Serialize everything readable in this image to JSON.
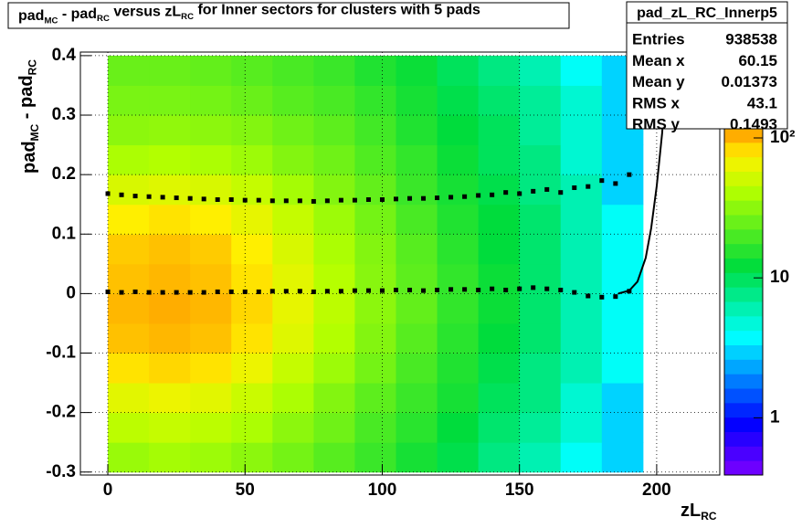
{
  "chart_data": {
    "type": "heatmap",
    "title": [
      "pad",
      "MC",
      " - pad",
      "RC",
      " versus zL",
      "RC",
      " for Inner sectors for clusters with 5 pads"
    ],
    "x_label": [
      "zL",
      "RC"
    ],
    "y_label": [
      "pad",
      "MC",
      " - pad",
      "RC"
    ],
    "xlim": [
      -10,
      223
    ],
    "ylim": [
      -0.305,
      0.406
    ],
    "xticks": [
      0,
      50,
      100,
      150,
      200
    ],
    "yticks": [
      -0.3,
      -0.2,
      -0.1,
      0,
      0.1,
      0.2,
      0.3,
      0.4
    ],
    "grid": true,
    "zlim": [
      0.39,
      118
    ],
    "zlog": true,
    "zticks": [
      1,
      10,
      {
        "value": 100,
        "label": "10²"
      }
    ],
    "xbins": [
      0,
      15,
      30,
      45,
      60,
      75,
      90,
      105,
      120,
      135,
      150,
      165,
      180,
      195
    ],
    "ybins": [
      -0.3,
      -0.25,
      -0.2,
      -0.15,
      -0.1,
      -0.05,
      0,
      0.05,
      0.1,
      0.15,
      0.2,
      0.25,
      0.3,
      0.35,
      0.4
    ],
    "z": [
      [
        35,
        38,
        36,
        32,
        27,
        22,
        18,
        14,
        11,
        8,
        6,
        4,
        3
      ],
      [
        45,
        48,
        45,
        40,
        32,
        26,
        20,
        16,
        12,
        9,
        7,
        5,
        3
      ],
      [
        60,
        65,
        60,
        50,
        40,
        30,
        23,
        18,
        14,
        10,
        8,
        5,
        3
      ],
      [
        80,
        85,
        80,
        65,
        48,
        36,
        27,
        20,
        15,
        11,
        8,
        6,
        4
      ],
      [
        95,
        100,
        95,
        80,
        58,
        42,
        30,
        22,
        16,
        12,
        9,
        6,
        4
      ],
      [
        100,
        105,
        100,
        85,
        62,
        45,
        32,
        24,
        17,
        13,
        9,
        6,
        4
      ],
      [
        95,
        100,
        95,
        80,
        60,
        43,
        31,
        23,
        17,
        13,
        9,
        6,
        4
      ],
      [
        90,
        95,
        90,
        75,
        55,
        40,
        30,
        22,
        16,
        12,
        9,
        6,
        4
      ],
      [
        75,
        80,
        75,
        62,
        48,
        36,
        27,
        20,
        15,
        12,
        9,
        6,
        4
      ],
      [
        55,
        58,
        55,
        48,
        38,
        30,
        24,
        18,
        14,
        11,
        8,
        6,
        3
      ],
      [
        40,
        42,
        40,
        36,
        30,
        26,
        21,
        17,
        13,
        10,
        8,
        5,
        3
      ],
      [
        32,
        33,
        32,
        30,
        26,
        23,
        19,
        15,
        12,
        10,
        7,
        5,
        3
      ],
      [
        28,
        28,
        27,
        25,
        22,
        20,
        17,
        14,
        11,
        9,
        7,
        5,
        3
      ],
      [
        25,
        25,
        24,
        22,
        20,
        18,
        15,
        13,
        10,
        8,
        6,
        4,
        3
      ]
    ],
    "profiles": [
      {
        "color": "#000000",
        "x": [
          0,
          5,
          10,
          15,
          20,
          25,
          30,
          35,
          40,
          45,
          50,
          55,
          60,
          65,
          70,
          75,
          80,
          85,
          90,
          95,
          100,
          105,
          110,
          115,
          120,
          125,
          130,
          135,
          140,
          145,
          150,
          155,
          160,
          165,
          170,
          175,
          180,
          185,
          190
        ],
        "values": [
          0.003,
          0.002,
          0.003,
          0.002,
          0.002,
          0.002,
          0.002,
          0.002,
          0.003,
          0.003,
          0.003,
          0.003,
          0.004,
          0.004,
          0.004,
          0.003,
          0.004,
          0.004,
          0.005,
          0.005,
          0.005,
          0.006,
          0.006,
          0.005,
          0.006,
          0.007,
          0.007,
          0.006,
          0.008,
          0.006,
          0.008,
          0.01,
          0.008,
          0.006,
          0.002,
          -0.004,
          -0.006,
          -0.005,
          0.004
        ]
      },
      {
        "color": "#000000",
        "x": [
          0,
          5,
          10,
          15,
          20,
          25,
          30,
          35,
          40,
          45,
          50,
          55,
          60,
          65,
          70,
          75,
          80,
          85,
          90,
          95,
          100,
          105,
          110,
          115,
          120,
          125,
          130,
          135,
          140,
          145,
          150,
          155,
          160,
          165,
          170,
          175,
          180,
          185,
          190
        ],
        "values": [
          0.168,
          0.166,
          0.164,
          0.163,
          0.162,
          0.161,
          0.16,
          0.159,
          0.158,
          0.158,
          0.157,
          0.157,
          0.156,
          0.156,
          0.156,
          0.155,
          0.156,
          0.157,
          0.157,
          0.158,
          0.158,
          0.159,
          0.16,
          0.16,
          0.161,
          0.162,
          0.163,
          0.165,
          0.166,
          0.17,
          0.168,
          0.172,
          0.175,
          0.17,
          0.178,
          0.18,
          0.19,
          0.185,
          0.2
        ]
      }
    ],
    "fit": {
      "color": "#000000",
      "x": [
        186,
        190,
        193,
        196,
        198,
        200,
        202,
        204
      ],
      "values": [
        0,
        0.005,
        0.02,
        0.06,
        0.11,
        0.18,
        0.27,
        0.4
      ]
    },
    "stats": {
      "name": "pad_zL_RC_Innerp5",
      "rows": [
        [
          "Entries",
          "938538"
        ],
        [
          "Mean x",
          "60.15"
        ],
        [
          "Mean y",
          "0.01373"
        ],
        [
          "RMS x",
          "43.1"
        ],
        [
          "RMS y",
          "0.1493"
        ]
      ]
    }
  }
}
